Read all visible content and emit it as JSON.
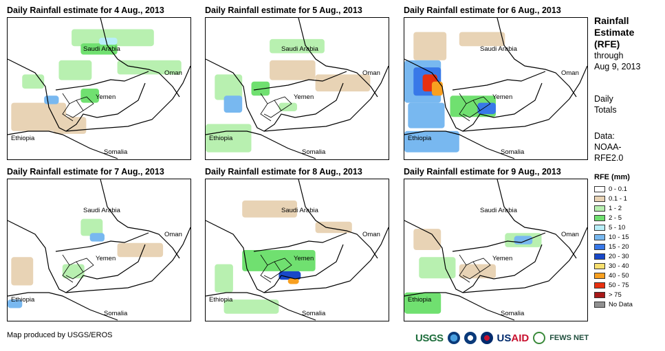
{
  "panels": [
    {
      "title": "Daily Rainfall estimate for 4 Aug., 2013"
    },
    {
      "title": "Daily Rainfall estimate for 5 Aug., 2013"
    },
    {
      "title": "Daily Rainfall estimate for 6 Aug., 2013"
    },
    {
      "title": "Daily Rainfall estimate for 7 Aug., 2013"
    },
    {
      "title": "Daily Rainfall estimate for 8 Aug., 2013"
    },
    {
      "title": "Daily Rainfall estimate for 9 Aug., 2013"
    }
  ],
  "map_labels": {
    "saudi": "Saudi Arabia",
    "oman": "Oman",
    "yemen": "Yemen",
    "ethiopia": "Ethiopia",
    "somalia": "Somalia"
  },
  "side": {
    "title_line1": "Rainfall",
    "title_line2": "Estimate",
    "title_line3": "(RFE)",
    "through": "through",
    "date": "Aug 9, 2013",
    "daily": "Daily",
    "totals": "Totals",
    "data_label": "Data:",
    "data_source1": "NOAA-",
    "data_source2": "RFE2.0"
  },
  "legend": {
    "title": "RFE (mm)",
    "items": [
      {
        "label": "0 - 0.1",
        "color": "#ffffff"
      },
      {
        "label": "0.1 - 1",
        "color": "#e8d3b5"
      },
      {
        "label": "1 - 2",
        "color": "#b8f0b0"
      },
      {
        "label": "2 - 5",
        "color": "#70e070"
      },
      {
        "label": "5 - 10",
        "color": "#b8eef8"
      },
      {
        "label": "10 - 15",
        "color": "#78b8f0"
      },
      {
        "label": "15 - 20",
        "color": "#3878e8"
      },
      {
        "label": "20 - 30",
        "color": "#1848c8"
      },
      {
        "label": "30 - 40",
        "color": "#f8e070"
      },
      {
        "label": "40 - 50",
        "color": "#f8a020"
      },
      {
        "label": "50 - 75",
        "color": "#e83010"
      },
      {
        "label": "> 75",
        "color": "#a81818"
      },
      {
        "label": "No Data",
        "color": "#909090"
      }
    ]
  },
  "credit": "Map produced by USGS/EROS",
  "logos": {
    "usgs": "USGS",
    "usaid_a": "US",
    "usaid_b": "AID",
    "fews": "FEWS NET"
  }
}
